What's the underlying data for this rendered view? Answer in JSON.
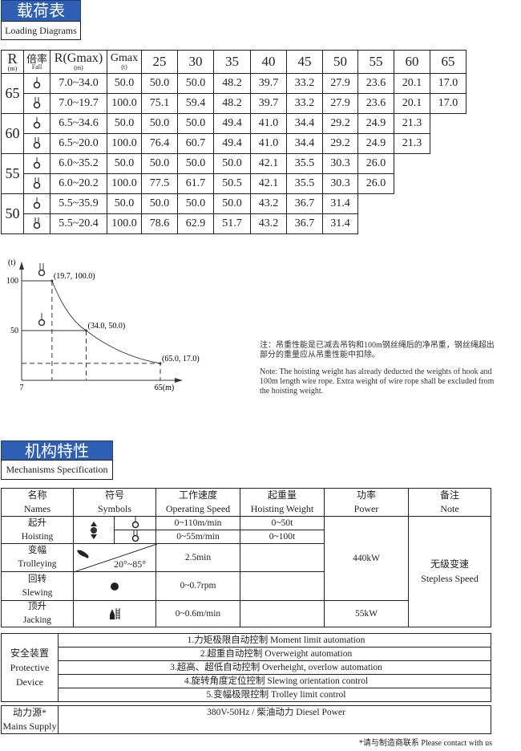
{
  "section1": {
    "title_cn": "载荷表",
    "title_en": "Loading Diagrams"
  },
  "load_table": {
    "headers": {
      "r": "R",
      "r_unit": "(m)",
      "fall": "倍率",
      "fall_en": "Fall",
      "rgmax": "R(Gmax)",
      "rgmax_unit": "(m)",
      "gmax": "Gmax",
      "gmax_unit": "(t)"
    },
    "radii": [
      "25",
      "30",
      "35",
      "40",
      "45",
      "50",
      "55",
      "60",
      "65"
    ],
    "groups": [
      {
        "R": "65",
        "rows": [
          {
            "fall": "single-hook",
            "rg": "7.0~34.0",
            "g": "50.0",
            "v": [
              "50.0",
              "50.0",
              "48.2",
              "39.7",
              "33.2",
              "27.9",
              "23.6",
              "20.1",
              "17.0"
            ]
          },
          {
            "fall": "double-hook",
            "rg": "7.0~19.7",
            "g": "100.0",
            "v": [
              "75.1",
              "59.4",
              "48.2",
              "39.7",
              "33.2",
              "27.9",
              "23.6",
              "20.1",
              "17.0"
            ]
          }
        ]
      },
      {
        "R": "60",
        "rows": [
          {
            "fall": "single-hook",
            "rg": "6.5~34.6",
            "g": "50.0",
            "v": [
              "50.0",
              "50.0",
              "49.4",
              "41.0",
              "34.4",
              "29.2",
              "24.9",
              "21.3"
            ]
          },
          {
            "fall": "double-hook",
            "rg": "6.5~20.0",
            "g": "100.0",
            "v": [
              "76.4",
              "60.7",
              "49.4",
              "41.0",
              "34.4",
              "29.2",
              "24.9",
              "21.3"
            ]
          }
        ]
      },
      {
        "R": "55",
        "rows": [
          {
            "fall": "single-hook",
            "rg": "6.0~35.2",
            "g": "50.0",
            "v": [
              "50.0",
              "50.0",
              "50.0",
              "42.1",
              "35.5",
              "30.3",
              "26.0"
            ]
          },
          {
            "fall": "double-hook",
            "rg": "6.0~20.2",
            "g": "100.0",
            "v": [
              "77.5",
              "61.7",
              "50.5",
              "42.1",
              "35.5",
              "30.3",
              "26.0"
            ]
          }
        ]
      },
      {
        "R": "50",
        "rows": [
          {
            "fall": "single-hook",
            "rg": "5.5~35.9",
            "g": "50.0",
            "v": [
              "50.0",
              "50.0",
              "50.0",
              "43.2",
              "36.7",
              "31.4"
            ]
          },
          {
            "fall": "double-hook",
            "rg": "5.5~20.4",
            "g": "100.0",
            "v": [
              "78.6",
              "62.9",
              "51.7",
              "43.2",
              "36.7",
              "31.4"
            ]
          }
        ]
      }
    ]
  },
  "chart_data": {
    "type": "line",
    "ylabel": "(t)",
    "xlabel": "(m)",
    "x_ticks": [
      "7",
      "65(m)"
    ],
    "y_ticks": [
      "100",
      "50"
    ],
    "xlim": [
      7,
      65
    ],
    "ylim": [
      0,
      100
    ],
    "points": [
      {
        "x": 19.7,
        "y": 100.0,
        "label": "(19.7, 100.0)"
      },
      {
        "x": 34.0,
        "y": 50.0,
        "label": "(34.0, 50.0)"
      },
      {
        "x": 65.0,
        "y": 17.0,
        "label": "(65.0, 17.0)"
      }
    ]
  },
  "note": {
    "cn": "注：吊重性能是已减去吊钩和100m钢丝绳后的净吊重，钢丝绳超出部分的重量应从吊重性能中扣除。",
    "en": "Note: The hoisting weight has already deducted the weights of hook and 100m length wire rope. Extra weight of wire rope shall be excluded from the hoisting weight."
  },
  "section2": {
    "title_cn": "机构特性",
    "title_en": "Mechanisms Specification"
  },
  "mech": {
    "headers": [
      {
        "cn": "名称",
        "en": "Names"
      },
      {
        "cn": "符号",
        "en": "Symbols"
      },
      {
        "cn": "工作速度",
        "en": "Operating Speed"
      },
      {
        "cn": "起重量",
        "en": "Hoisting Weight"
      },
      {
        "cn": "功率",
        "en": "Power"
      },
      {
        "cn": "备注",
        "en": "Note"
      }
    ],
    "hoisting": {
      "cn": "起升",
      "en": "Hoisting",
      "speed1": "0~110m/min",
      "speed2": "0~55m/min",
      "w1": "0~50t",
      "w2": "0~100t"
    },
    "trolleying": {
      "cn": "变幅",
      "en": "Trolleying",
      "angle": "20°~85°",
      "speed": "2.5min"
    },
    "slewing": {
      "cn": "回转",
      "en": "Slewing",
      "speed": "0~0.7rpm"
    },
    "jacking": {
      "cn": "顶升",
      "en": "Jacking",
      "speed": "0~0.6m/min",
      "power": "55kW"
    },
    "power_main": "440kW",
    "note_cn": "无级变速",
    "note_en": "Stepless Speed"
  },
  "protective": {
    "cn": "安全装置",
    "en1": "Protective",
    "en2": "Device",
    "items": [
      "1.力矩极限自动控制  Moment limit automation",
      "2.超重自动控制  Overweight automation",
      "3.超高、超低自动控制  Overheight, overlow automation",
      "4.旋转角度定位控制  Slewing orientation control",
      "5.变幅极限控制  Trolley limit control"
    ]
  },
  "mains": {
    "cn": "动力源*",
    "en": "Mains Supply",
    "value": "380V-50Hz / 柴油动力  Diesel Power"
  },
  "footnote": "*请与制造商联系  Please contact with us"
}
